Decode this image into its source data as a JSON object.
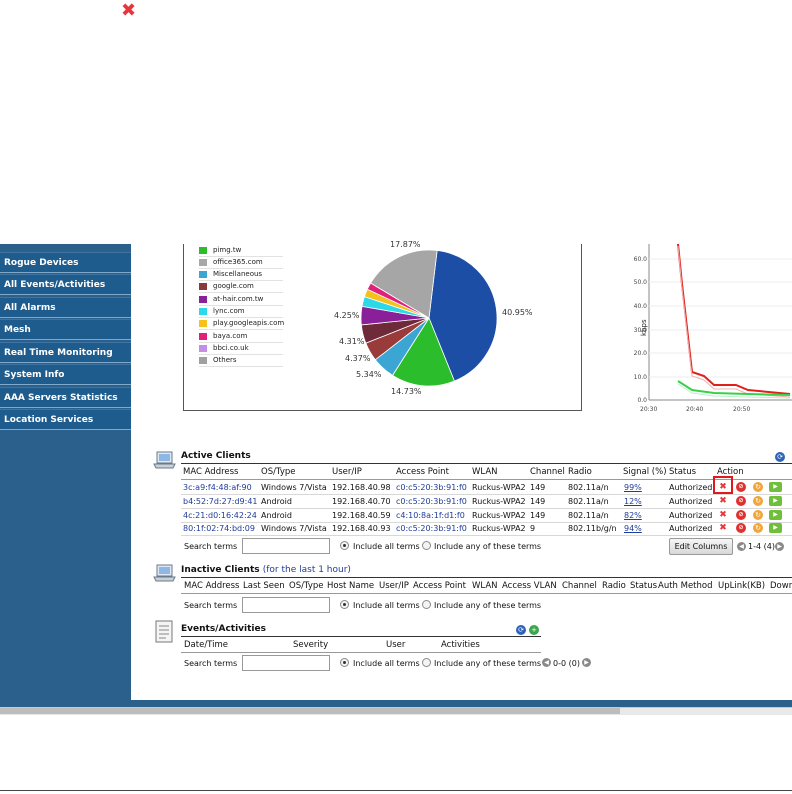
{
  "top_icon": "close-x-icon",
  "sidebar": {
    "items": [
      {
        "label": "Rogue Devices"
      },
      {
        "label": "All Events/Activities"
      },
      {
        "label": "All Alarms"
      },
      {
        "label": "Mesh"
      },
      {
        "label": "Real Time Monitoring"
      },
      {
        "label": "System Info"
      },
      {
        "label": "AAA Servers Statistics"
      },
      {
        "label": "Location Services"
      }
    ]
  },
  "pie": {
    "legend": [
      {
        "label": "pimg.tw",
        "color": "#2bbd2b"
      },
      {
        "label": "office365.com",
        "color": "#a8a8a8"
      },
      {
        "label": "Miscellaneous",
        "color": "#3ba6d3"
      },
      {
        "label": "google.com",
        "color": "#8b3a3a"
      },
      {
        "label": "at-hair.com.tw",
        "color": "#8a1f9a"
      },
      {
        "label": "lync.com",
        "color": "#2dd8e8"
      },
      {
        "label": "play.googleapis.com",
        "color": "#f4c21a"
      },
      {
        "label": "baya.com",
        "color": "#e0207a"
      },
      {
        "label": "bbci.co.uk",
        "color": "#c28ee8"
      },
      {
        "label": "Others",
        "color": "#a0a0a0"
      }
    ],
    "labels": [
      "17.87%",
      "40.95%",
      "14.73%",
      "5.34%",
      "4.37%",
      "4.31%",
      "4.25%"
    ]
  },
  "line_chart": {
    "ylabel": "kbps",
    "y_ticks": [
      "60.0",
      "50.0",
      "40.0",
      "30.0",
      "20.0",
      "10.0",
      "0.0"
    ],
    "x_ticks": [
      "20:30",
      "20:40",
      "20:50"
    ]
  },
  "active_clients": {
    "title": "Active Clients",
    "columns": [
      "MAC Address",
      "OS/Type",
      "User/IP",
      "Access Point",
      "WLAN",
      "Channel",
      "Radio",
      "Signal (%)",
      "Status",
      "Action"
    ],
    "rows": [
      {
        "mac": "3c:a9:f4:48:af:90",
        "os": "Windows 7/Vista",
        "ip": "192.168.40.98",
        "ap": "c0:c5:20:3b:91:f0",
        "wlan": "Ruckus-WPA2",
        "channel": "149",
        "radio": "802.11a/n",
        "signal": "99%",
        "status": "Authorized"
      },
      {
        "mac": "b4:52:7d:27:d9:41",
        "os": "Android",
        "ip": "192.168.40.70",
        "ap": "c0:c5:20:3b:91:f0",
        "wlan": "Ruckus-WPA2",
        "channel": "149",
        "radio": "802.11a/n",
        "signal": "12%",
        "status": "Authorized"
      },
      {
        "mac": "4c:21:d0:16:42:24",
        "os": "Android",
        "ip": "192.168.40.59",
        "ap": "c4:10:8a:1f:d1:f0",
        "wlan": "Ruckus-WPA2",
        "channel": "149",
        "radio": "802.11a/n",
        "signal": "82%",
        "status": "Authorized"
      },
      {
        "mac": "80:1f:02:74:bd:09",
        "os": "Windows 7/Vista",
        "ip": "192.168.40.93",
        "ap": "c0:c5:20:3b:91:f0",
        "wlan": "Ruckus-WPA2",
        "channel": "9",
        "radio": "802.11b/g/n",
        "signal": "94%",
        "status": "Authorized"
      }
    ],
    "search_label": "Search terms",
    "opt_all": "Include all terms",
    "opt_any": "Include any of these terms",
    "edit_columns": "Edit Columns",
    "pager": "1-4 (4)"
  },
  "inactive_clients": {
    "title": "Inactive Clients",
    "subtitle": "(for the last 1 hour)",
    "columns": [
      "MAC Address",
      "Last Seen",
      "OS/Type",
      "Host Name",
      "User/IP",
      "Access Point",
      "WLAN",
      "Access VLAN",
      "Channel",
      "Radio",
      "Status",
      "Auth Method",
      "UpLink(KB)",
      "Down"
    ],
    "search_label": "Search terms",
    "opt_all": "Include all terms",
    "opt_any": "Include any of these terms"
  },
  "events": {
    "title": "Events/Activities",
    "columns": [
      "Date/Time",
      "Severity",
      "User",
      "Activities"
    ],
    "search_label": "Search terms",
    "opt_all": "Include all terms",
    "opt_any": "Include any of these terms",
    "pager": "0-0 (0)"
  }
}
